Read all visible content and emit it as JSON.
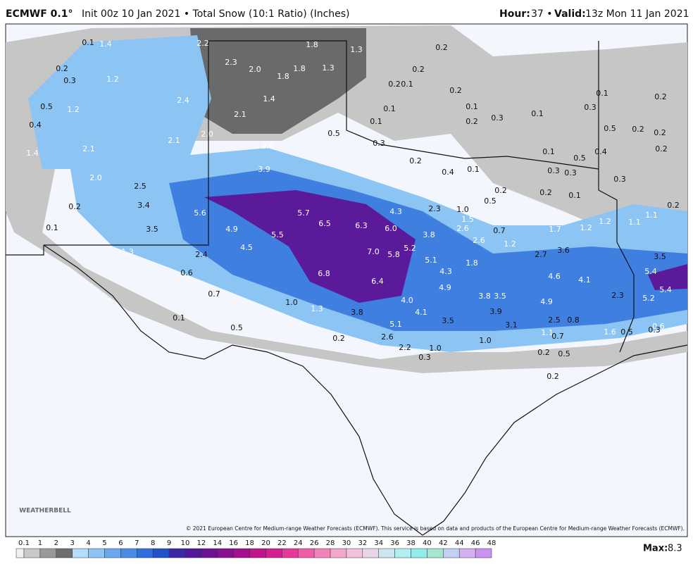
{
  "header": {
    "title": "ECMWF 0.1°",
    "subtitle": "Init 00z 10 Jan 2021 • Total Snow (10:1 Ratio) (Inches)",
    "hour_label": "Hour:",
    "hour": "37 •",
    "valid_label": "Valid:",
    "valid": "13z Mon 11 Jan 2021"
  },
  "map": {
    "labels": [
      "0.1",
      "1.4",
      "2.2",
      "1.8",
      "1.3",
      "0.2",
      "0.2",
      "0.3",
      "1.2",
      "2.3",
      "2.0",
      "1.8",
      "1.3",
      "1.8",
      "0.2",
      "0.2",
      "0.1",
      "0.2",
      "0.1",
      "0.2",
      "0.5",
      "1.2",
      "2.4",
      "1.4",
      "0.1",
      "0.1",
      "0.3",
      "0.1",
      "0.3",
      "0.4",
      "2.1",
      "0.1",
      "0.2",
      "0.5",
      "0.2",
      "0.2",
      "1.4",
      "2.1",
      "2.1",
      "2.0",
      "2.0",
      "0.5",
      "0.3",
      "0.1",
      "0.5",
      "0.4",
      "0.2",
      "0.2",
      "0.4",
      "0.1",
      "0.3",
      "0.3",
      "0.3",
      "2.0",
      "3.9",
      "2.5",
      "0.2",
      "0.2",
      "0.2",
      "0.1",
      "3.4",
      "5.6",
      "5.7",
      "4.3",
      "2.3",
      "1.0",
      "0.5",
      "1.5",
      "1.1",
      "0.2",
      "0.1",
      "3.5",
      "4.9",
      "6.5",
      "6.3",
      "6.0",
      "3.8",
      "2.6",
      "0.7",
      "1.7",
      "1.2",
      "1.2",
      "1.1",
      "5.5",
      "2.6",
      "1.2",
      "3.6",
      "1.3",
      "2.4",
      "4.5",
      "7.0",
      "5.2",
      "5.8",
      "2.7",
      "3.5",
      "5.1",
      "1.8",
      "0.6",
      "6.8",
      "4.3",
      "4.6",
      "4.1",
      "5.4",
      "6.4",
      "4.9",
      "5.4",
      "0.7",
      "2.3",
      "5.2",
      "1.0",
      "4.0",
      "3.8",
      "3.5",
      "4.9",
      "1.3",
      "3.8",
      "4.1",
      "3.9",
      "0.1",
      "2.5",
      "0.8",
      "3.5",
      "0.6",
      "0.3",
      "0.5",
      "5.1",
      "3.1",
      "1.1",
      "0.7",
      "1.6",
      "0.5",
      "0.2",
      "2.6",
      "1.0",
      "2.2",
      "1.0",
      "0.2",
      "0.5",
      "0.3",
      "0.2"
    ],
    "logo": "WEATHERBELL",
    "copyright": "© 2021 European Centre for Medium-range Weather Forecasts (ECMWF). This service is based on data and products of the European Centre for Medium-range Weather Forecasts (ECMWF)."
  },
  "legend": {
    "ticks": [
      "0.1",
      "1",
      "2",
      "3",
      "4",
      "5",
      "6",
      "7",
      "8",
      "9",
      "10",
      "12",
      "14",
      "16",
      "18",
      "20",
      "22",
      "24",
      "26",
      "28",
      "30",
      "32",
      "34",
      "36",
      "38",
      "40",
      "42",
      "44",
      "46",
      "48"
    ],
    "colors": [
      "#f0f0f0",
      "#c8c8c8",
      "#9a9a9a",
      "#6e6e6e",
      "#b5dcfa",
      "#8cc4f4",
      "#69a8ee",
      "#4a8ce6",
      "#2f6fdc",
      "#1f52c8",
      "#3b2aa8",
      "#52189a",
      "#6c1293",
      "#870f90",
      "#a2108f",
      "#bc168f",
      "#d2208f",
      "#e2399a",
      "#ec5ea8",
      "#f283b9",
      "#f4a6cb",
      "#f2c2da",
      "#e6d6e8",
      "#cce6f2",
      "#b0f0f0",
      "#92ecec",
      "#a6e6cc",
      "#c2d0f2",
      "#d2b2f2",
      "#c992ee"
    ],
    "max_label": "Max:",
    "max": "8.3"
  }
}
